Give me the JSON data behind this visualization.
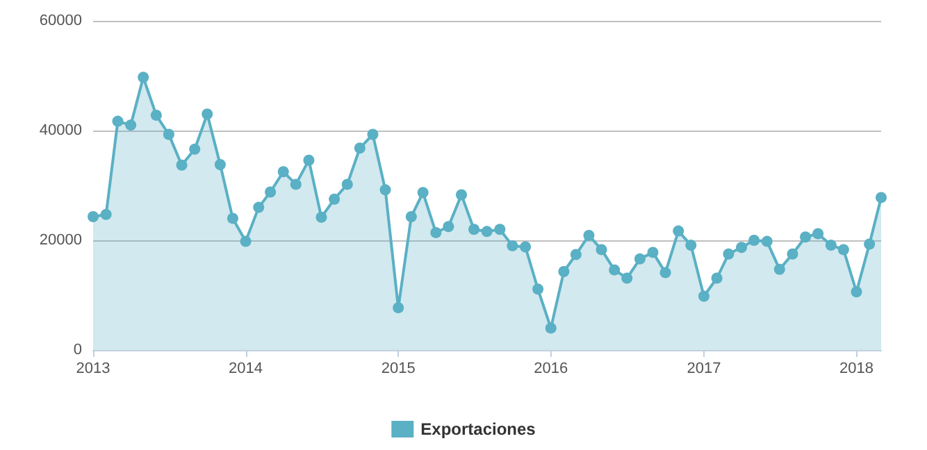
{
  "chart_data": {
    "type": "area",
    "x": [
      "2013-01",
      "2013-02",
      "2013-03",
      "2013-04",
      "2013-05",
      "2013-06",
      "2013-07",
      "2013-08",
      "2013-09",
      "2013-10",
      "2013-11",
      "2013-12",
      "2014-01",
      "2014-02",
      "2014-03",
      "2014-04",
      "2014-05",
      "2014-06",
      "2014-07",
      "2014-08",
      "2014-09",
      "2014-10",
      "2014-11",
      "2014-12",
      "2015-01",
      "2015-02",
      "2015-03",
      "2015-04",
      "2015-05",
      "2015-06",
      "2015-07",
      "2015-08",
      "2015-09",
      "2015-10",
      "2015-11",
      "2015-12",
      "2016-01",
      "2016-02",
      "2016-03",
      "2016-04",
      "2016-05",
      "2016-06",
      "2016-07",
      "2016-08",
      "2016-09",
      "2016-10",
      "2016-11",
      "2016-12",
      "2017-01",
      "2017-02",
      "2017-03",
      "2017-04",
      "2017-05",
      "2017-06",
      "2017-07",
      "2017-08",
      "2017-09",
      "2017-10",
      "2017-11",
      "2017-12",
      "2018-01",
      "2018-02",
      "2018-03"
    ],
    "series": [
      {
        "name": "Exportaciones",
        "color": "#5ab0c4",
        "values": [
          24300,
          24700,
          41700,
          41000,
          49700,
          42800,
          39300,
          33700,
          36600,
          43000,
          33800,
          24000,
          19800,
          26000,
          28800,
          32500,
          30200,
          34600,
          24200,
          27500,
          30200,
          36800,
          39300,
          29200,
          7700,
          24300,
          28700,
          21400,
          22500,
          28300,
          22000,
          21600,
          22000,
          19000,
          18800,
          11100,
          4000,
          14300,
          17400,
          20900,
          18300,
          14600,
          13100,
          16600,
          17800,
          14100,
          21700,
          19100,
          9800,
          13100,
          17500,
          18700,
          20000,
          19800,
          14700,
          17500,
          20600,
          21200,
          19100,
          18300,
          10600,
          19300,
          27800
        ]
      }
    ],
    "xlim": [
      "2013-01",
      "2018-03"
    ],
    "xticks": [
      "2013",
      "2014",
      "2015",
      "2016",
      "2017",
      "2018"
    ],
    "ylim": [
      0,
      60000
    ],
    "yticks": [
      0,
      20000,
      40000,
      60000
    ],
    "grid": "y",
    "legend": "bottom",
    "marker": "circle",
    "line_style": "solid"
  }
}
